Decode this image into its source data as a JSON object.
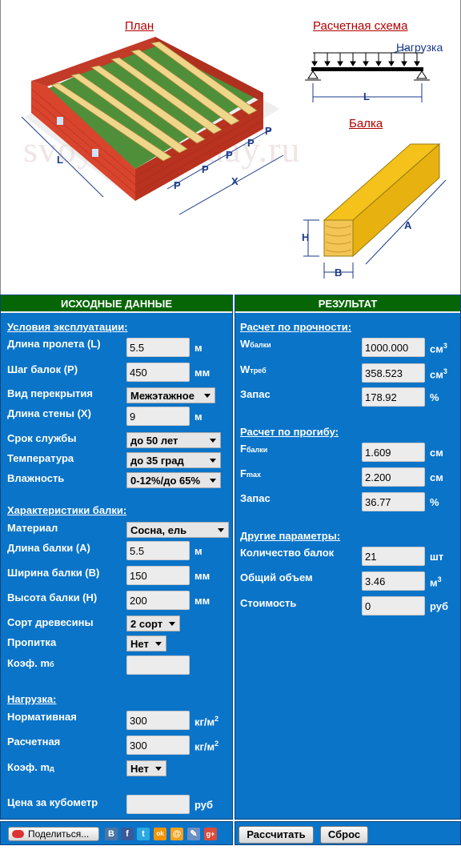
{
  "illustration": {
    "plan_title": "План",
    "scheme_title": "Расчетная схема",
    "load_label": "Нагрузка",
    "span_label": "L",
    "beam_title": "Балка",
    "dim_l": "L",
    "dim_x": "X",
    "dim_p": "P",
    "dim_h": "H",
    "dim_b": "B",
    "dim_a": "A",
    "watermark": "svoyomintoday.ru"
  },
  "left_panel": {
    "title": "ИСХОДНЫЕ ДАННЫЕ",
    "conditions_header": "Условия эксплуатации:",
    "span_label": "Длина пролета (L)",
    "span_value": "5.5",
    "span_unit": "м",
    "step_label": "Шаг балок (P)",
    "step_value": "450",
    "step_unit": "мм",
    "floor_type_label": "Вид перекрытия",
    "floor_type_value": "Межэтажное",
    "wall_label": "Длина стены (X)",
    "wall_value": "9",
    "wall_unit": "м",
    "service_label": "Срок службы",
    "service_value": "до 50 лет",
    "temp_label": "Температура",
    "temp_value": "до 35 град",
    "humidity_label": "Влажность",
    "humidity_value": "0-12%/до 65%",
    "beam_header": "Характеристики балки:",
    "material_label": "Материал",
    "material_value": "Сосна, ель",
    "length_label": "Длина балки (A)",
    "length_value": "5.5",
    "length_unit": "м",
    "width_label": "Ширина балки (B)",
    "width_value": "150",
    "width_unit": "мм",
    "height_label": "Высота балки (H)",
    "height_value": "200",
    "height_unit": "мм",
    "grade_label": "Сорт древесины",
    "grade_value": "2 сорт",
    "impreg_label": "Пропитка",
    "impreg_value": "Нет",
    "coef_mb_label": "Коэф. m",
    "coef_mb_sub": "б",
    "coef_mb_value": "",
    "load_header": "Нагрузка:",
    "norm_label": "Нормативная",
    "norm_value": "300",
    "norm_unit": "кг/м",
    "calc_label": "Расчетная",
    "calc_value": "300",
    "calc_unit": "кг/м",
    "coef_md_label": "Коэф. m",
    "coef_md_sub": "д",
    "coef_md_value": "Нет",
    "price_label": "Цена за кубометр",
    "price_value": "",
    "price_unit": "руб",
    "unit_power": "2"
  },
  "right_panel": {
    "title": "РЕЗУЛЬТАТ",
    "strength_header": "Расчет по прочности:",
    "w_beam_label": "W",
    "w_beam_sub": "балки",
    "w_beam_value": "1000.000",
    "w_unit": "см",
    "w_power": "3",
    "w_req_label": "W",
    "w_req_sub": "треб",
    "w_req_value": "358.523",
    "reserve1_label": "Запас",
    "reserve1_value": "178.92",
    "reserve_unit": "%",
    "deflection_header": "Расчет по прогибу:",
    "f_beam_label": "F",
    "f_beam_sub": "балки",
    "f_beam_value": "1.609",
    "f_unit": "см",
    "f_max_label": "F",
    "f_max_sub": "max",
    "f_max_value": "2.200",
    "reserve2_label": "Запас",
    "reserve2_value": "36.77",
    "other_header": "Другие параметры:",
    "count_label": "Количество балок",
    "count_value": "21",
    "count_unit": "шт",
    "volume_label": "Общий объем",
    "volume_value": "3.46",
    "volume_unit": "м",
    "volume_power": "3",
    "cost_label": "Стоимость",
    "cost_value": "0",
    "cost_unit": "руб"
  },
  "footer": {
    "share_label": "Поделиться...",
    "social": [
      "В",
      "f",
      "t",
      "ok",
      "@",
      "✎",
      "g+"
    ],
    "calc_button": "Рассчитать",
    "reset_button": "Сброс"
  },
  "colors": {
    "panel": "#0a74c8",
    "header": "#066606",
    "title_red": "#b30000"
  }
}
